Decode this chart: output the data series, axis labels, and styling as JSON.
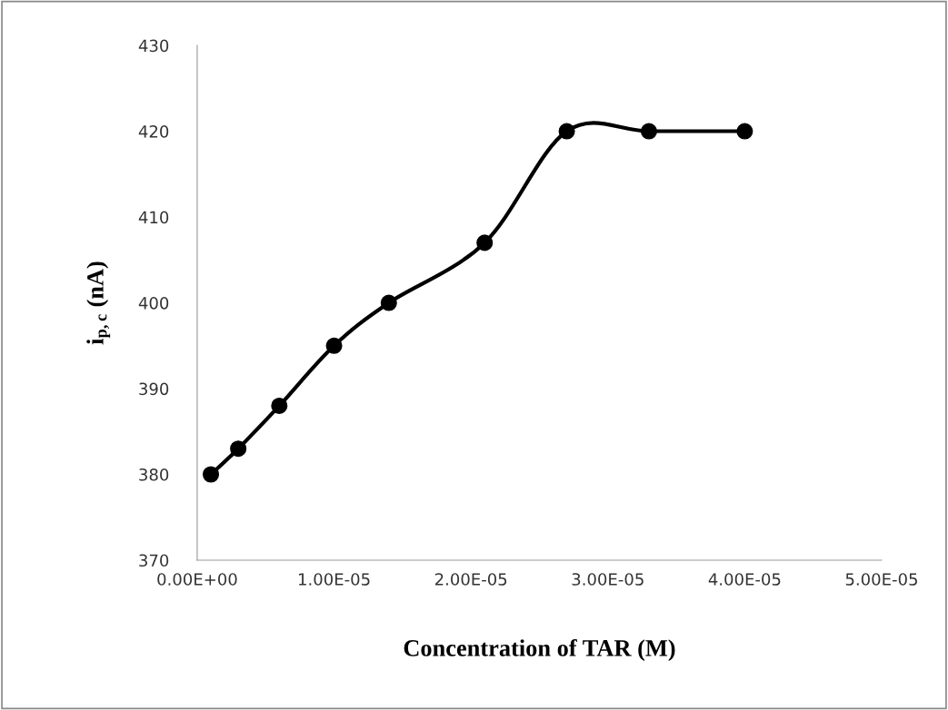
{
  "chart_data": {
    "type": "line",
    "xlabel": "Concentration of TAR (M)",
    "ylabel": "i$_{p,c}$ (nA)",
    "x": [
      1e-06,
      3e-06,
      6e-06,
      1e-05,
      1.4e-05,
      2.1e-05,
      2.7e-05,
      3.3e-05,
      4e-05
    ],
    "series": [
      {
        "color": "#000000",
        "values": [
          380,
          383,
          388,
          395,
          400,
          407,
          420,
          420,
          420
        ]
      }
    ],
    "xlim": [
      0,
      5e-05
    ],
    "xticks": [
      {
        "value": 0,
        "label": "0.00E+00"
      },
      {
        "value": 1e-05,
        "label": "1.00E-05"
      },
      {
        "value": 2e-05,
        "label": "2.00E-05"
      },
      {
        "value": 3e-05,
        "label": "3.00E-05"
      },
      {
        "value": 4e-05,
        "label": "4.00E-05"
      },
      {
        "value": 5e-05,
        "label": "5.00E-05"
      }
    ],
    "ylim": [
      370,
      430
    ],
    "yticks": [
      370,
      380,
      390,
      400,
      410,
      420,
      430
    ],
    "grid": false,
    "legend": false,
    "marker": "circle",
    "line_style": "solid"
  }
}
